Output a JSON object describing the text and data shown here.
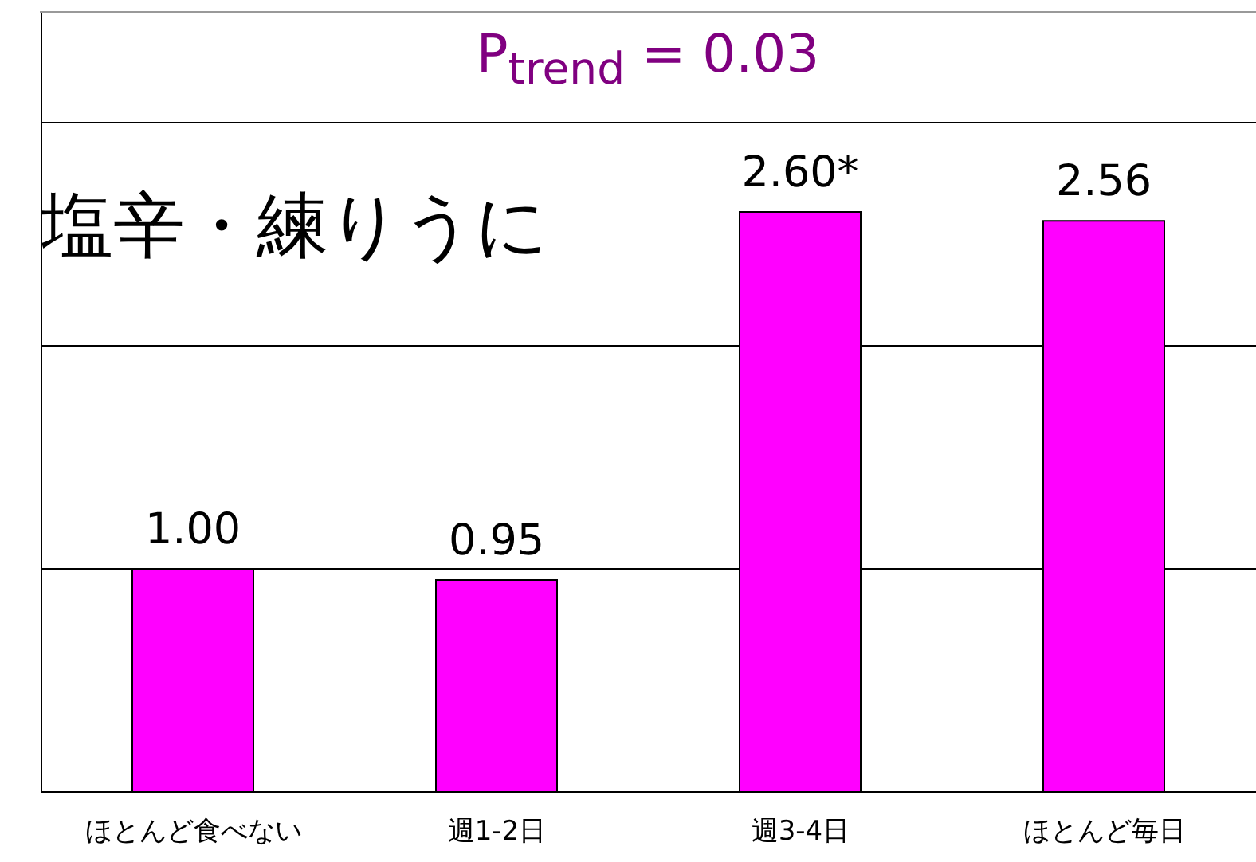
{
  "chart_data": {
    "type": "bar",
    "title": "P$_{trend}$ = 0.03",
    "annotations": [
      "塩辛・練りうに"
    ],
    "categories": [
      "ほとんど食べない",
      "週1-2日",
      "週3-4日",
      "ほとんど毎日"
    ],
    "values": [
      1.0,
      0.95,
      2.6,
      2.56
    ],
    "color": "#ff00ff",
    "value_labels": [
      "1.00",
      "0.95",
      "2.60*",
      "2.56"
    ],
    "ylim": [
      0,
      3.5
    ],
    "tick_labels": "x",
    "grid": "y",
    "legend": false
  }
}
